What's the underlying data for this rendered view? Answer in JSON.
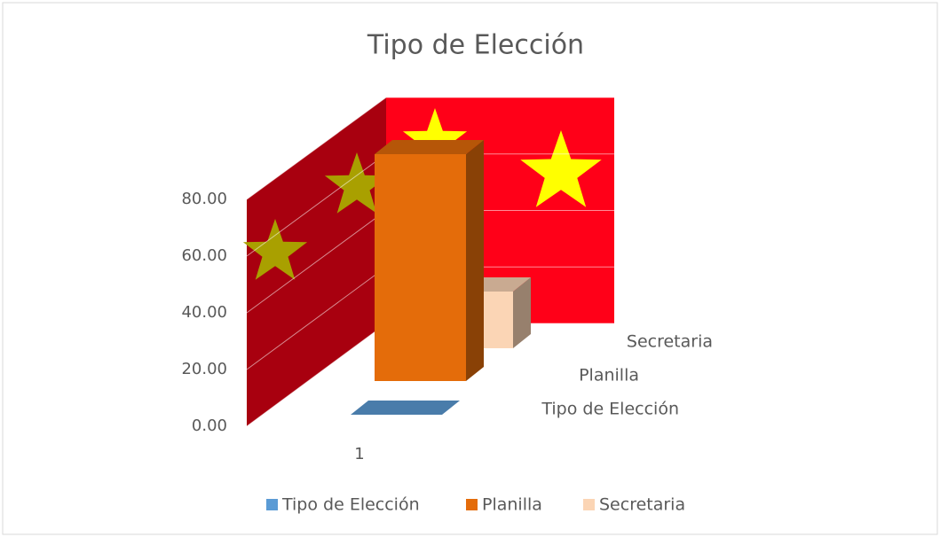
{
  "chart_data": {
    "type": "bar3d",
    "title": "Tipo de Elección",
    "categories": [
      "1"
    ],
    "series": [
      {
        "name": "Tipo de Elección",
        "color": "#5b9bd5",
        "values": [
          0
        ]
      },
      {
        "name": "Planilla",
        "color": "#e46c0a",
        "values": [
          80
        ]
      },
      {
        "name": "Secretaria",
        "color": "#fbd5b5",
        "values": [
          20
        ]
      }
    ],
    "ylim": [
      0,
      80
    ],
    "yticks": [
      {
        "value": 0,
        "label": "0.00"
      },
      {
        "value": 20,
        "label": "20.00"
      },
      {
        "value": 40,
        "label": "40.00"
      },
      {
        "value": 60,
        "label": "60.00"
      },
      {
        "value": 80,
        "label": "80.00"
      }
    ],
    "grid": true,
    "legend": "bottom"
  }
}
